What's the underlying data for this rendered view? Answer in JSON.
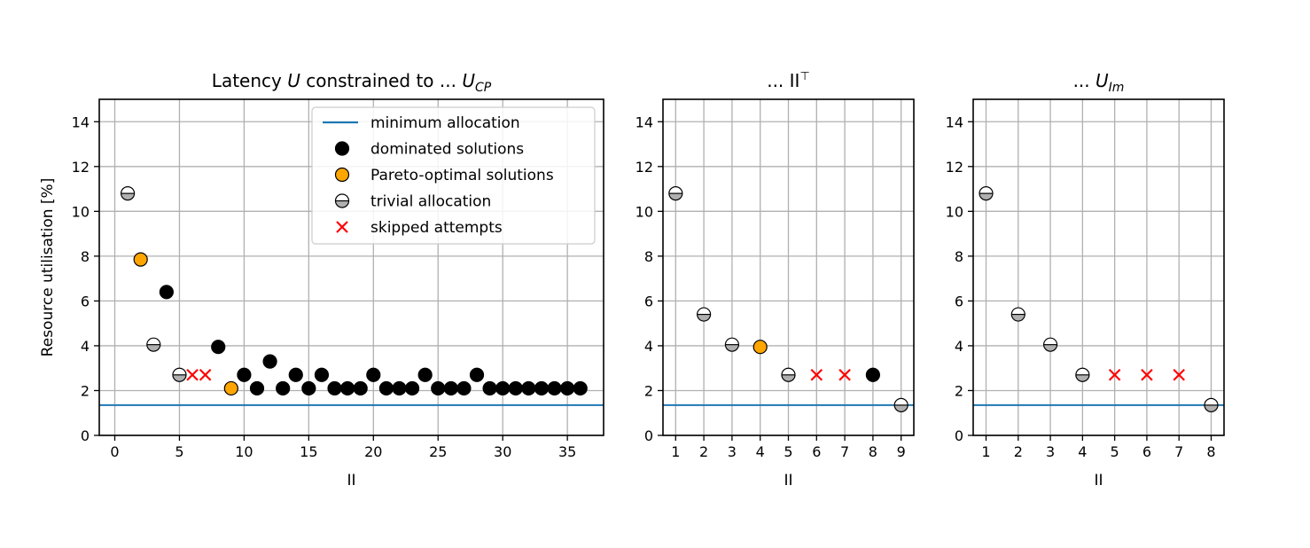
{
  "colors": {
    "min_line": "#1f77b4",
    "dominated": "#000000",
    "pareto": "#ffa500",
    "trivial_top": "#ffffff",
    "trivial_bottom": "#b0b0b0",
    "skipped": "#ff0000",
    "grid": "#b0b0b0"
  },
  "legend": {
    "placement": "upper-right",
    "entries": [
      {
        "key": "min",
        "label": "minimum allocation"
      },
      {
        "key": "dominated",
        "label": "dominated solutions"
      },
      {
        "key": "pareto",
        "label": "Pareto-optimal solutions"
      },
      {
        "key": "trivial",
        "label": "trivial allocation"
      },
      {
        "key": "skipped",
        "label": "skipped attempts"
      }
    ]
  },
  "chart_data": [
    {
      "type": "scatter",
      "title_text": "Latency ",
      "title_var": "U",
      "title_mid": " constrained to ... ",
      "title_tail": "U",
      "title_sub": "CP",
      "xlabel": "II",
      "ylabel": "Resource utilisation [%]",
      "xlim": [
        -1.2,
        37.8
      ],
      "ylim": [
        0,
        15
      ],
      "xticks": [
        0,
        5,
        10,
        15,
        20,
        25,
        30,
        35
      ],
      "yticks": [
        0,
        2,
        4,
        6,
        8,
        10,
        12,
        14
      ],
      "grid": true,
      "min_allocation": 1.35,
      "points": {
        "dominated": [
          [
            4,
            6.4
          ],
          [
            8,
            3.95
          ],
          [
            10,
            2.7
          ],
          [
            11,
            2.1
          ],
          [
            12,
            3.3
          ],
          [
            13,
            2.1
          ],
          [
            14,
            2.7
          ],
          [
            15,
            2.1
          ],
          [
            16,
            2.7
          ],
          [
            17,
            2.1
          ],
          [
            18,
            2.1
          ],
          [
            19,
            2.1
          ],
          [
            20,
            2.7
          ],
          [
            21,
            2.1
          ],
          [
            22,
            2.1
          ],
          [
            23,
            2.1
          ],
          [
            24,
            2.7
          ],
          [
            25,
            2.1
          ],
          [
            26,
            2.1
          ],
          [
            27,
            2.1
          ],
          [
            28,
            2.7
          ],
          [
            29,
            2.1
          ],
          [
            30,
            2.1
          ],
          [
            31,
            2.1
          ],
          [
            32,
            2.1
          ],
          [
            33,
            2.1
          ],
          [
            34,
            2.1
          ],
          [
            35,
            2.1
          ],
          [
            36,
            2.1
          ]
        ],
        "pareto": [
          [
            2,
            7.85
          ],
          [
            9,
            2.1
          ]
        ],
        "trivial": [
          [
            1,
            10.8
          ],
          [
            3,
            4.05
          ],
          [
            5,
            2.7
          ]
        ],
        "skipped": [
          [
            6,
            2.7
          ],
          [
            7,
            2.7
          ]
        ]
      }
    },
    {
      "type": "scatter",
      "title_text": "... II",
      "title_sup": "⊤",
      "xlabel": "II",
      "ylabel": "",
      "xlim": [
        0.55,
        9.45
      ],
      "ylim": [
        0,
        15
      ],
      "xticks": [
        1,
        2,
        3,
        4,
        5,
        6,
        7,
        8,
        9
      ],
      "yticks": [
        0,
        2,
        4,
        6,
        8,
        10,
        12,
        14
      ],
      "grid": true,
      "min_allocation": 1.35,
      "points": {
        "dominated": [
          [
            8,
            2.7
          ]
        ],
        "pareto": [
          [
            4,
            3.95
          ]
        ],
        "trivial": [
          [
            1,
            10.8
          ],
          [
            2,
            5.4
          ],
          [
            3,
            4.05
          ],
          [
            5,
            2.7
          ],
          [
            9,
            1.35
          ]
        ],
        "skipped": [
          [
            6,
            2.7
          ],
          [
            7,
            2.7
          ]
        ]
      }
    },
    {
      "type": "scatter",
      "title_text": "... ",
      "title_var": "U",
      "title_sub": "Im",
      "xlabel": "II",
      "ylabel": "",
      "xlim": [
        0.6,
        8.4
      ],
      "ylim": [
        0,
        15
      ],
      "xticks": [
        1,
        2,
        3,
        4,
        5,
        6,
        7,
        8
      ],
      "yticks": [
        0,
        2,
        4,
        6,
        8,
        10,
        12,
        14
      ],
      "grid": true,
      "min_allocation": 1.35,
      "points": {
        "dominated": [],
        "pareto": [],
        "trivial": [
          [
            1,
            10.8
          ],
          [
            2,
            5.4
          ],
          [
            3,
            4.05
          ],
          [
            4,
            2.7
          ],
          [
            8,
            1.35
          ]
        ],
        "skipped": [
          [
            5,
            2.7
          ],
          [
            6,
            2.7
          ],
          [
            7,
            2.7
          ]
        ]
      }
    }
  ]
}
